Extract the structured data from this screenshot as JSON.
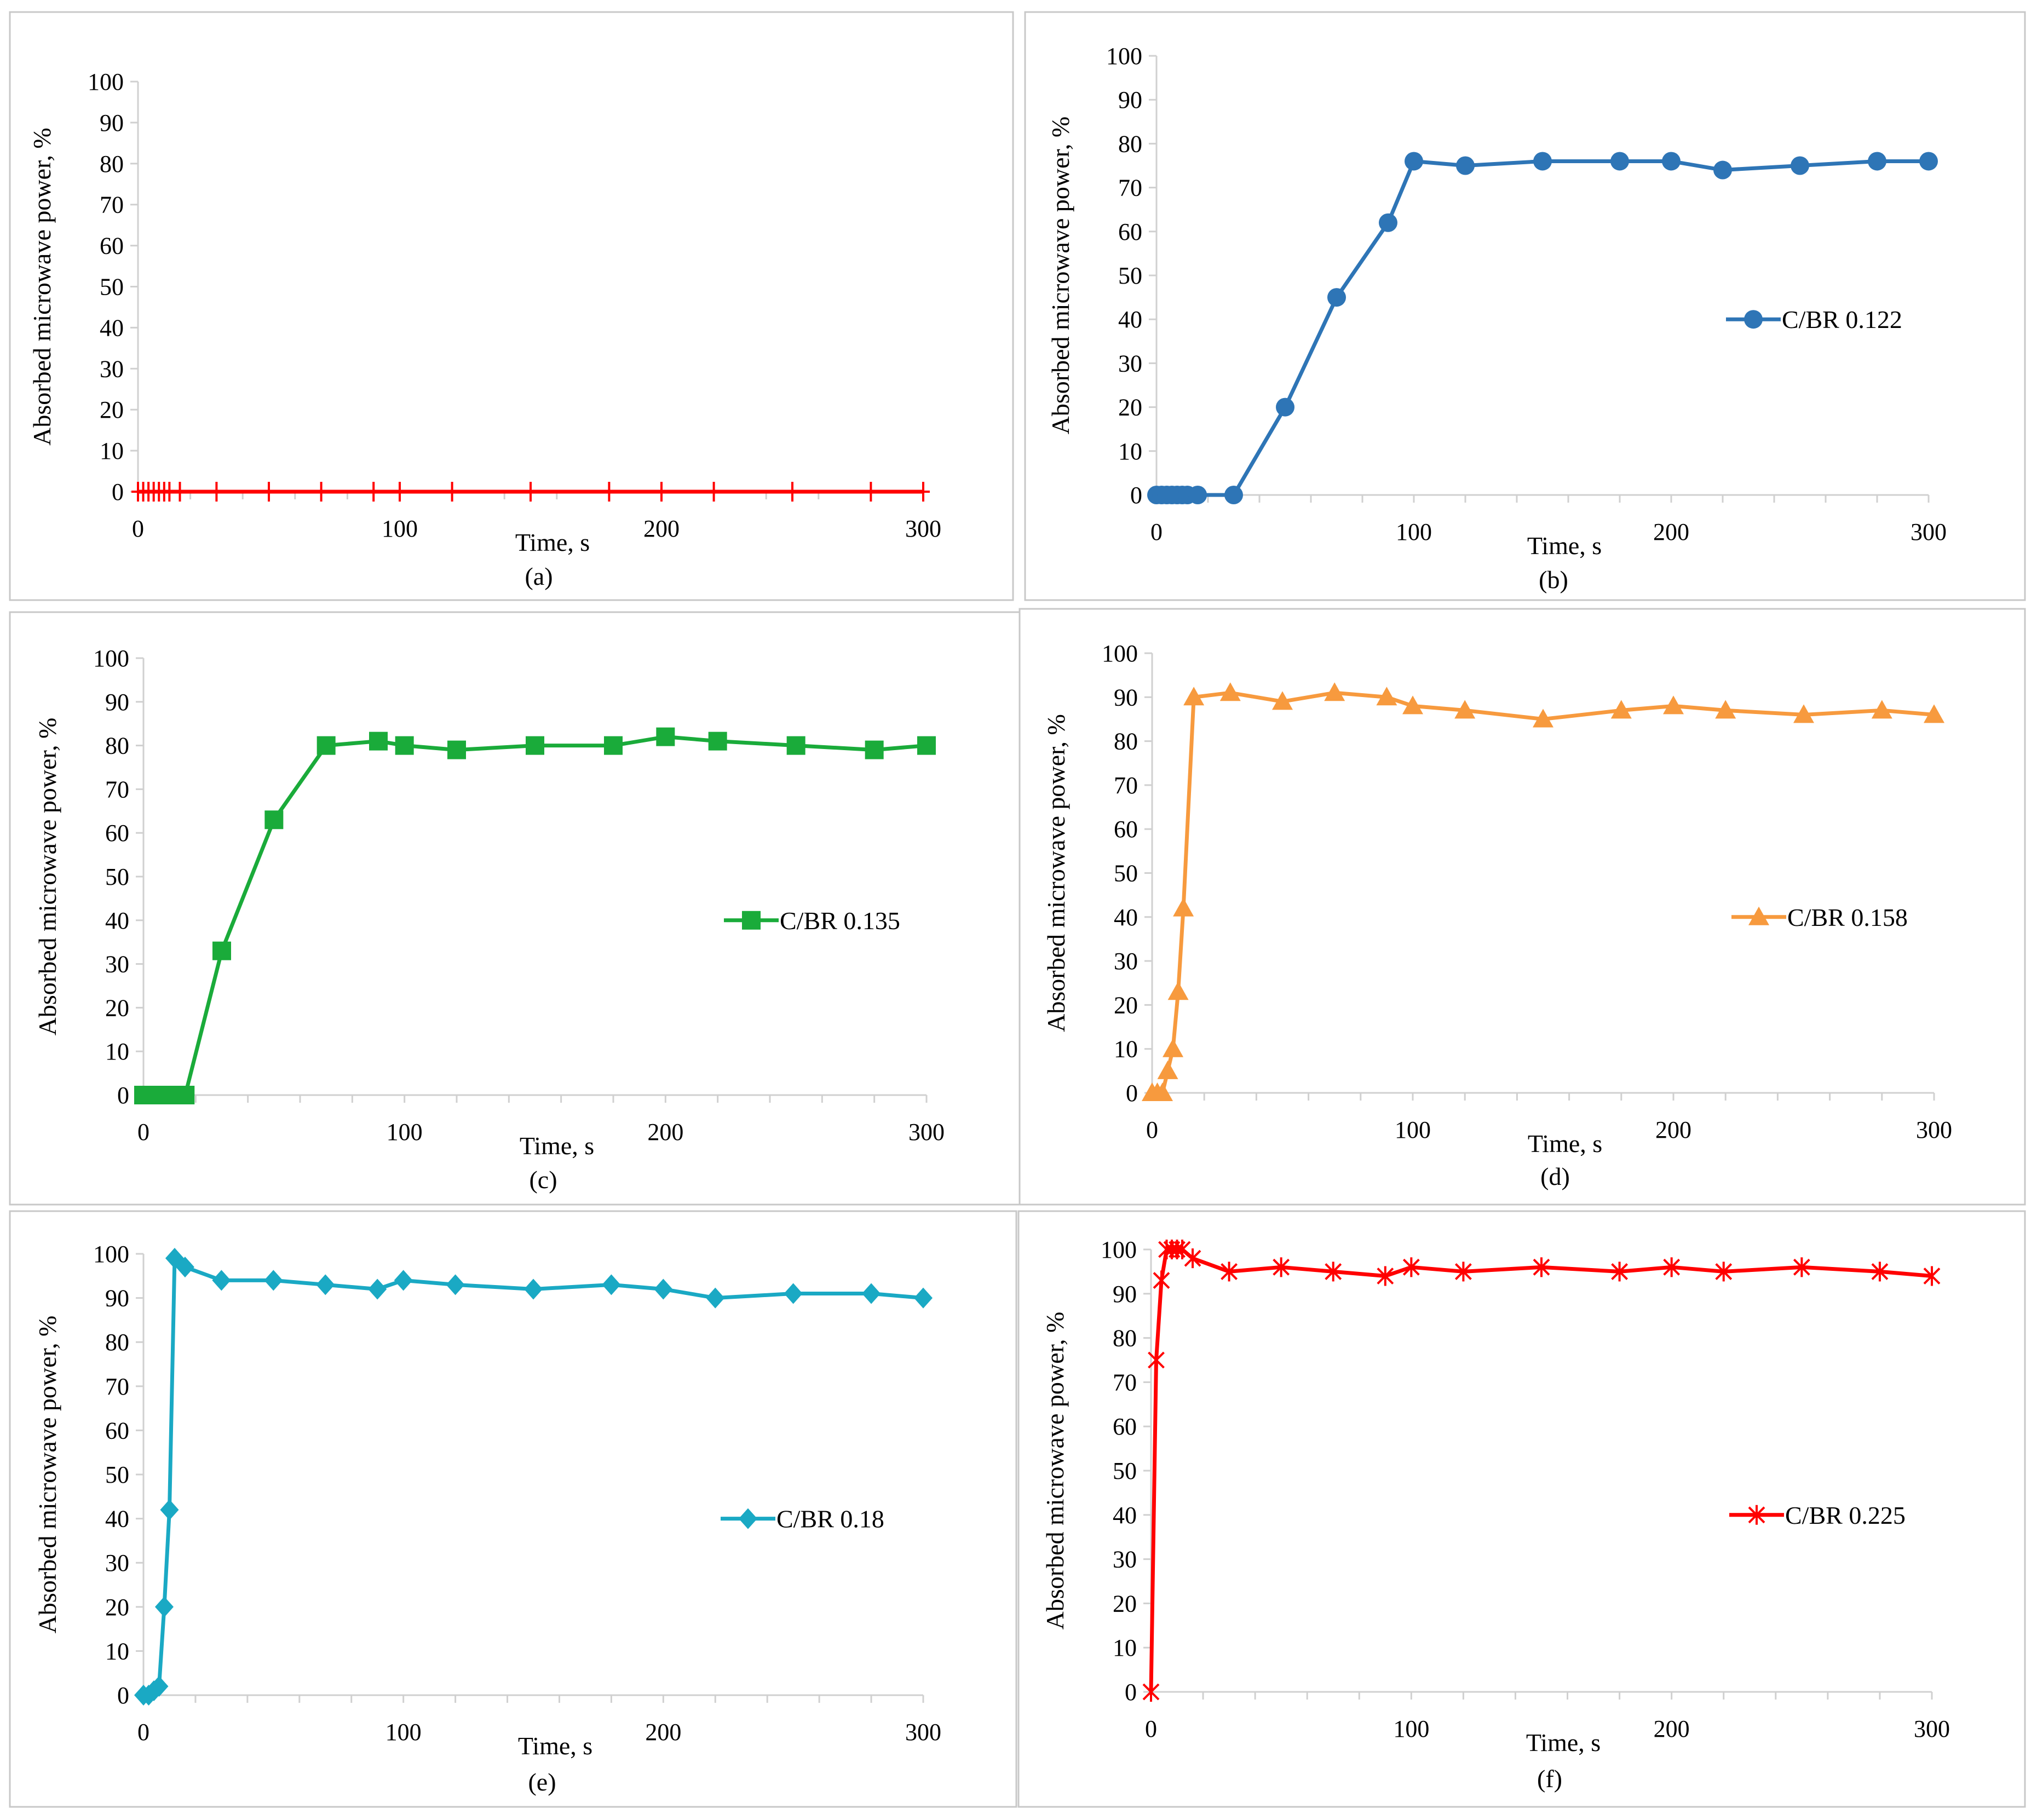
{
  "figure": {
    "y_axis_title": "Absorbed microwave power, %",
    "x_axis_title": "Time, s"
  },
  "chart_data": [
    {
      "type": "line",
      "panel": "(a)",
      "title": "",
      "xlabel": "Time, s",
      "ylabel": "Absorbed microwave power, %",
      "xlim": [
        0,
        300
      ],
      "ylim": [
        0,
        100
      ],
      "xticks": [
        0,
        100,
        200,
        300
      ],
      "yticks": [
        0,
        10,
        20,
        30,
        40,
        50,
        60,
        70,
        80,
        90,
        100
      ],
      "legend": null,
      "series": [
        {
          "name": "",
          "color": "#ff0000",
          "marker": "plus",
          "x": [
            0,
            2,
            4,
            6,
            8,
            10,
            12,
            16,
            30,
            50,
            70,
            90,
            100,
            120,
            150,
            180,
            200,
            220,
            250,
            280,
            300
          ],
          "y": [
            0,
            0,
            0,
            0,
            0,
            0,
            0,
            0,
            0,
            0,
            0,
            0,
            0,
            0,
            0,
            0,
            0,
            0,
            0,
            0,
            0
          ]
        }
      ]
    },
    {
      "type": "line",
      "panel": "(b)",
      "title": "",
      "xlabel": "Time, s",
      "ylabel": "Absorbed microwave power, %",
      "xlim": [
        0,
        300
      ],
      "ylim": [
        0,
        100
      ],
      "xticks": [
        0,
        100,
        200,
        300
      ],
      "yticks": [
        0,
        10,
        20,
        30,
        40,
        50,
        60,
        70,
        80,
        90,
        100
      ],
      "legend": "right",
      "series": [
        {
          "name": "C/BR 0.122",
          "color": "#2e75b6",
          "marker": "circle",
          "x": [
            0,
            2,
            4,
            6,
            8,
            10,
            12,
            16,
            30,
            50,
            70,
            90,
            100,
            120,
            150,
            180,
            200,
            220,
            250,
            280,
            300
          ],
          "y": [
            0,
            0,
            0,
            0,
            0,
            0,
            0,
            0,
            0,
            20,
            45,
            62,
            76,
            75,
            76,
            76,
            76,
            74,
            75,
            76,
            76
          ]
        }
      ]
    },
    {
      "type": "line",
      "panel": "(c)",
      "title": "",
      "xlabel": "Time, s",
      "ylabel": "Absorbed microwave power, %",
      "xlim": [
        0,
        300
      ],
      "ylim": [
        0,
        100
      ],
      "xticks": [
        0,
        100,
        200,
        300
      ],
      "yticks": [
        0,
        10,
        20,
        30,
        40,
        50,
        60,
        70,
        80,
        90,
        100
      ],
      "legend": "right",
      "series": [
        {
          "name": "C/BR 0.135",
          "color": "#1aab3a",
          "marker": "square",
          "x": [
            0,
            2,
            4,
            6,
            8,
            10,
            12,
            16,
            30,
            50,
            70,
            90,
            100,
            120,
            150,
            180,
            200,
            220,
            250,
            280,
            300
          ],
          "y": [
            0,
            0,
            0,
            0,
            0,
            0,
            0,
            0,
            33,
            63,
            80,
            81,
            80,
            79,
            80,
            80,
            82,
            81,
            80,
            79,
            80
          ]
        }
      ]
    },
    {
      "type": "line",
      "panel": "(d)",
      "title": "",
      "xlabel": "Time, s",
      "ylabel": "Absorbed microwave power, %",
      "xlim": [
        0,
        300
      ],
      "ylim": [
        0,
        100
      ],
      "xticks": [
        0,
        100,
        200,
        300
      ],
      "yticks": [
        0,
        10,
        20,
        30,
        40,
        50,
        60,
        70,
        80,
        90,
        100
      ],
      "legend": "right",
      "series": [
        {
          "name": "C/BR 0.158",
          "color": "#f79a3e",
          "marker": "triangle",
          "x": [
            0,
            2,
            4,
            6,
            8,
            10,
            12,
            16,
            30,
            50,
            70,
            90,
            100,
            120,
            150,
            180,
            200,
            220,
            250,
            280,
            300
          ],
          "y": [
            0,
            0,
            0,
            5,
            10,
            23,
            42,
            90,
            91,
            89,
            91,
            90,
            88,
            87,
            85,
            87,
            88,
            87,
            86,
            87,
            86
          ]
        }
      ]
    },
    {
      "type": "line",
      "panel": "(e)",
      "title": "",
      "xlabel": "Time, s",
      "ylabel": "Absorbed microwave power, %",
      "xlim": [
        0,
        300
      ],
      "ylim": [
        0,
        100
      ],
      "xticks": [
        0,
        100,
        200,
        300
      ],
      "yticks": [
        0,
        10,
        20,
        30,
        40,
        50,
        60,
        70,
        80,
        90,
        100
      ],
      "legend": "right",
      "series": [
        {
          "name": "C/BR 0.18",
          "color": "#1aa9c4",
          "marker": "diamond",
          "x": [
            0,
            2,
            4,
            6,
            8,
            10,
            12,
            16,
            30,
            50,
            70,
            90,
            100,
            120,
            150,
            180,
            200,
            220,
            250,
            280,
            300
          ],
          "y": [
            0,
            0,
            1,
            2,
            20,
            42,
            99,
            97,
            94,
            94,
            93,
            92,
            94,
            93,
            92,
            93,
            92,
            90,
            91,
            91,
            90
          ]
        }
      ]
    },
    {
      "type": "line",
      "panel": "(f)",
      "title": "",
      "xlabel": "Time, s",
      "ylabel": "Absorbed microwave power, %",
      "xlim": [
        0,
        300
      ],
      "ylim": [
        0,
        100
      ],
      "xticks": [
        0,
        100,
        200,
        300
      ],
      "yticks": [
        0,
        10,
        20,
        30,
        40,
        50,
        60,
        70,
        80,
        90,
        100
      ],
      "legend": "right",
      "series": [
        {
          "name": "C/BR 0.225",
          "color": "#ff0000",
          "marker": "star",
          "x": [
            0,
            2,
            4,
            6,
            8,
            10,
            12,
            16,
            30,
            50,
            70,
            90,
            100,
            120,
            150,
            180,
            200,
            220,
            250,
            280,
            300
          ],
          "y": [
            0,
            75,
            93,
            100,
            100,
            100,
            100,
            98,
            95,
            96,
            95,
            94,
            96,
            95,
            96,
            95,
            96,
            95,
            96,
            95,
            94
          ]
        }
      ]
    }
  ]
}
